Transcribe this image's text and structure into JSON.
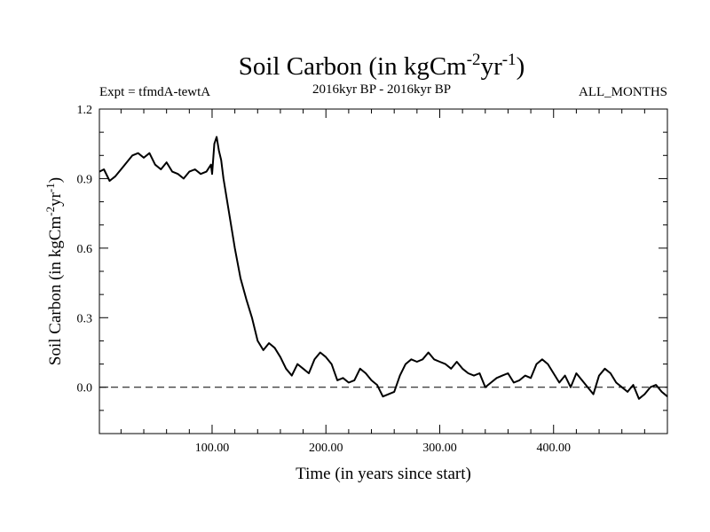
{
  "chart_data": {
    "type": "line",
    "title_main": "Soil Carbon (in kgCm",
    "title_sup1": "-2",
    "title_mid": "yr",
    "title_sup2": "-1",
    "title_end": ")",
    "subtitle_left": "Expt = tfmdA-tewtA",
    "subtitle_center": "2016kyr BP - 2016kyr BP",
    "subtitle_right": "ALL_MONTHS",
    "xlabel": "Time (in years since start)",
    "ylabel_main": "Soil Carbon (in kgCm",
    "ylabel_sup1": "-2",
    "ylabel_mid": "yr",
    "ylabel_sup2": "-1",
    "ylabel_end": ")",
    "xlim": [
      1,
      500
    ],
    "ylim": [
      -0.2,
      1.2
    ],
    "x_ticks": [
      100,
      200,
      300,
      400
    ],
    "x_tick_labels": [
      "100.00",
      "200.00",
      "300.00",
      "400.00"
    ],
    "y_ticks": [
      0.0,
      0.3,
      0.6,
      0.9,
      1.2
    ],
    "y_tick_labels": [
      "0.0",
      "0.3",
      "0.6",
      "0.9",
      "1.2"
    ],
    "reference_line": 0.0,
    "series": [
      {
        "name": "Soil Carbon",
        "x": [
          1,
          5,
          10,
          15,
          20,
          25,
          30,
          35,
          40,
          45,
          50,
          55,
          60,
          65,
          70,
          75,
          80,
          85,
          90,
          95,
          99,
          100,
          102,
          104,
          106,
          108,
          110,
          115,
          120,
          125,
          130,
          135,
          140,
          145,
          150,
          155,
          160,
          165,
          170,
          175,
          180,
          185,
          190,
          195,
          200,
          205,
          210,
          215,
          220,
          225,
          230,
          235,
          240,
          245,
          250,
          255,
          260,
          265,
          270,
          275,
          280,
          285,
          290,
          295,
          300,
          305,
          310,
          315,
          320,
          325,
          330,
          335,
          340,
          345,
          350,
          355,
          360,
          365,
          370,
          375,
          380,
          385,
          390,
          395,
          400,
          405,
          410,
          415,
          420,
          425,
          430,
          435,
          440,
          445,
          450,
          455,
          460,
          465,
          470,
          475,
          480,
          485,
          490,
          495,
          500
        ],
        "y": [
          0.93,
          0.94,
          0.89,
          0.91,
          0.94,
          0.97,
          1.0,
          1.01,
          0.99,
          1.01,
          0.96,
          0.94,
          0.97,
          0.93,
          0.92,
          0.9,
          0.93,
          0.94,
          0.92,
          0.93,
          0.96,
          0.92,
          1.05,
          1.08,
          1.02,
          0.98,
          0.9,
          0.75,
          0.6,
          0.47,
          0.38,
          0.3,
          0.2,
          0.16,
          0.19,
          0.17,
          0.13,
          0.08,
          0.05,
          0.1,
          0.08,
          0.06,
          0.12,
          0.15,
          0.13,
          0.1,
          0.03,
          0.04,
          0.02,
          0.03,
          0.08,
          0.06,
          0.03,
          0.01,
          -0.04,
          -0.03,
          -0.02,
          0.05,
          0.1,
          0.12,
          0.11,
          0.12,
          0.15,
          0.12,
          0.11,
          0.1,
          0.08,
          0.11,
          0.08,
          0.06,
          0.05,
          0.06,
          0.0,
          0.02,
          0.04,
          0.05,
          0.06,
          0.02,
          0.03,
          0.05,
          0.04,
          0.1,
          0.12,
          0.1,
          0.06,
          0.02,
          0.05,
          0.0,
          0.06,
          0.03,
          0.0,
          -0.03,
          0.05,
          0.08,
          0.06,
          0.02,
          0.0,
          -0.02,
          0.01,
          -0.05,
          -0.03,
          0.0,
          0.01,
          -0.02,
          -0.04
        ]
      }
    ]
  }
}
